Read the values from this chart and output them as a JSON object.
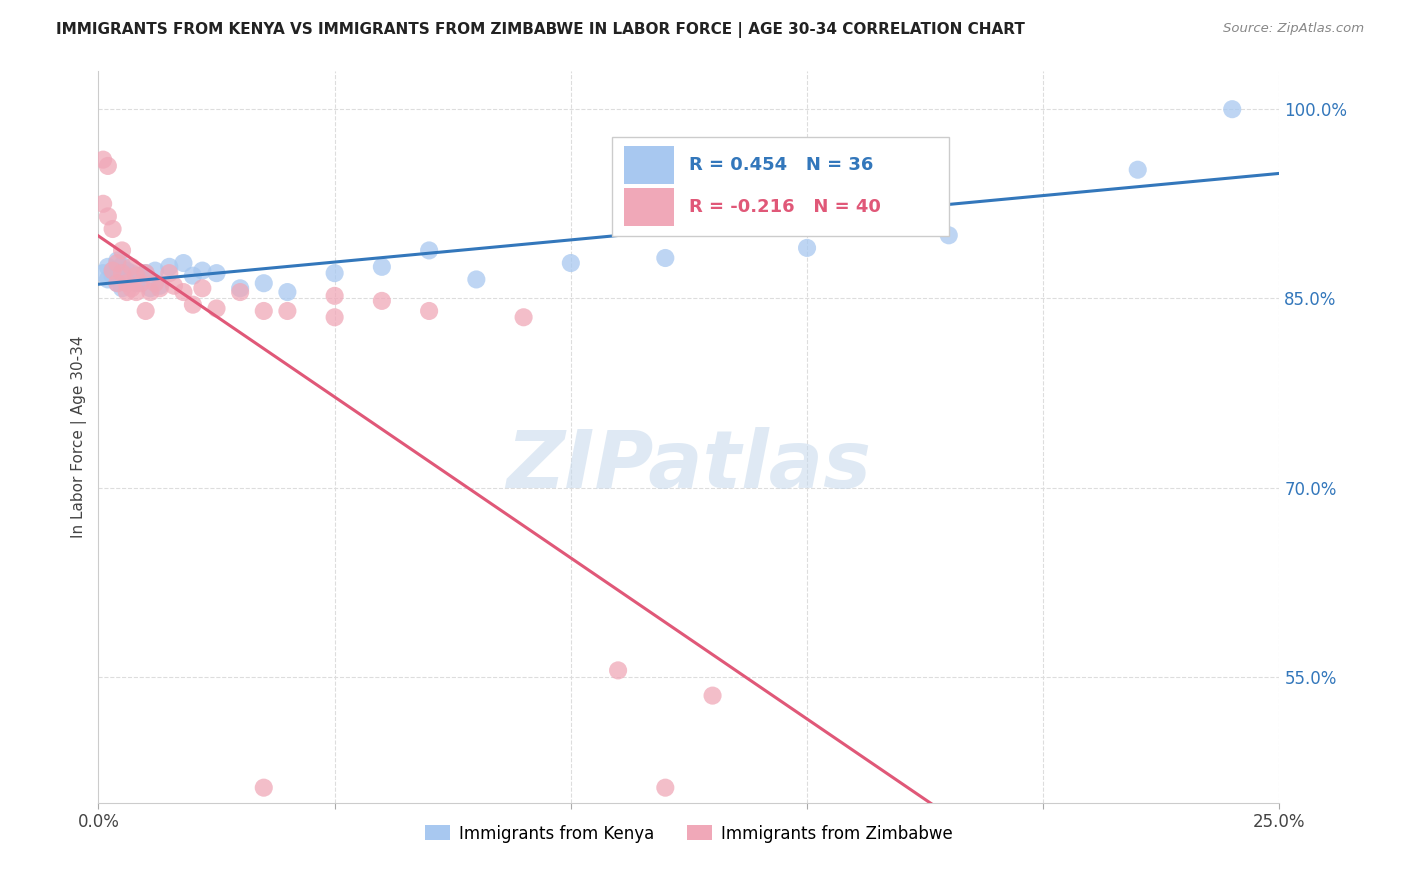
{
  "title": "IMMIGRANTS FROM KENYA VS IMMIGRANTS FROM ZIMBABWE IN LABOR FORCE | AGE 30-34 CORRELATION CHART",
  "source": "Source: ZipAtlas.com",
  "ylabel": "In Labor Force | Age 30-34",
  "xlim": [
    0.0,
    0.25
  ],
  "ylim": [
    0.45,
    1.03
  ],
  "xtick_positions": [
    0.0,
    0.05,
    0.1,
    0.15,
    0.2,
    0.25
  ],
  "xtick_labels": [
    "0.0%",
    "",
    "",
    "",
    "",
    "25.0%"
  ],
  "ytick_labels_right": [
    "55.0%",
    "70.0%",
    "85.0%",
    "100.0%"
  ],
  "ytick_positions_right": [
    0.55,
    0.7,
    0.85,
    1.0
  ],
  "grid_color": "#dddddd",
  "background_color": "#ffffff",
  "kenya_color": "#a8c8f0",
  "zimbabwe_color": "#f0a8b8",
  "kenya_line_color": "#3377bb",
  "zimbabwe_line_color": "#e05878",
  "kenya_R": 0.454,
  "kenya_N": 36,
  "zimbabwe_R": -0.216,
  "zimbabwe_N": 40,
  "legend_label_kenya": "Immigrants from Kenya",
  "legend_label_zimbabwe": "Immigrants from Zimbabwe",
  "watermark": "ZIPatlas",
  "kenya_x": [
    0.001,
    0.002,
    0.002,
    0.003,
    0.003,
    0.004,
    0.004,
    0.005,
    0.005,
    0.006,
    0.006,
    0.007,
    0.008,
    0.009,
    0.01,
    0.011,
    0.012,
    0.013,
    0.015,
    0.018,
    0.02,
    0.022,
    0.025,
    0.03,
    0.035,
    0.04,
    0.05,
    0.06,
    0.07,
    0.08,
    0.1,
    0.12,
    0.15,
    0.18,
    0.22,
    0.24
  ],
  "kenya_y": [
    0.87,
    0.875,
    0.865,
    0.872,
    0.868,
    0.88,
    0.862,
    0.876,
    0.858,
    0.872,
    0.865,
    0.87,
    0.862,
    0.868,
    0.87,
    0.858,
    0.872,
    0.86,
    0.875,
    0.878,
    0.868,
    0.872,
    0.87,
    0.858,
    0.862,
    0.855,
    0.87,
    0.875,
    0.888,
    0.865,
    0.878,
    0.882,
    0.89,
    0.9,
    0.952,
    1.0
  ],
  "zimbabwe_x": [
    0.001,
    0.001,
    0.002,
    0.002,
    0.003,
    0.003,
    0.004,
    0.004,
    0.005,
    0.005,
    0.006,
    0.006,
    0.007,
    0.007,
    0.008,
    0.008,
    0.009,
    0.01,
    0.011,
    0.012,
    0.013,
    0.015,
    0.016,
    0.018,
    0.02,
    0.022,
    0.025,
    0.03,
    0.035,
    0.04,
    0.05,
    0.06,
    0.07,
    0.09,
    0.11,
    0.13,
    0.035,
    0.12,
    0.01,
    0.05
  ],
  "zimbabwe_y": [
    0.96,
    0.925,
    0.955,
    0.915,
    0.905,
    0.872,
    0.878,
    0.862,
    0.888,
    0.87,
    0.862,
    0.855,
    0.875,
    0.858,
    0.868,
    0.855,
    0.862,
    0.87,
    0.855,
    0.862,
    0.858,
    0.87,
    0.86,
    0.855,
    0.845,
    0.858,
    0.842,
    0.855,
    0.84,
    0.84,
    0.852,
    0.848,
    0.84,
    0.835,
    0.555,
    0.535,
    0.462,
    0.462,
    0.84,
    0.835
  ]
}
